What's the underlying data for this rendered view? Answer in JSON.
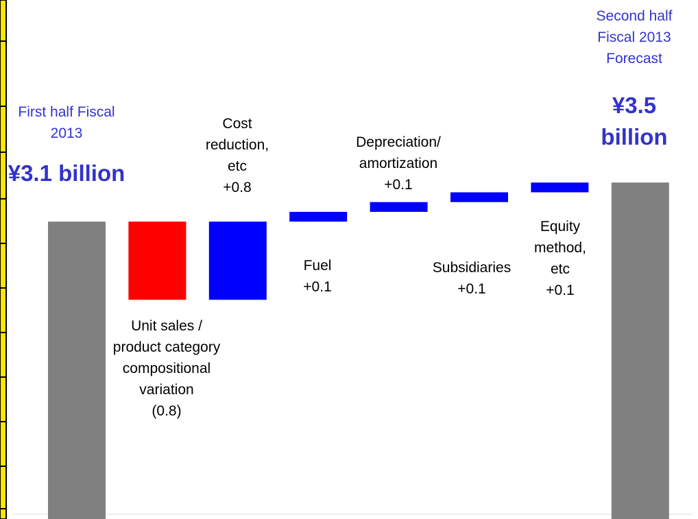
{
  "chart_data": {
    "type": "waterfall",
    "categories": [
      "First half Fiscal 2013",
      "Unit sales / product category compositional variation",
      "Cost reduction, etc",
      "Fuel",
      "Depreciation/ amortization",
      "Subsidiaries",
      "Equity method, etc",
      "Second half Fiscal 2013 Forecast"
    ],
    "values": [
      3.1,
      -0.8,
      0.8,
      0.1,
      0.1,
      0.1,
      0.1,
      3.5
    ],
    "value_labels": [
      "¥3.1 billion",
      "(0.8)",
      "+0.8",
      "+0.1",
      "+0.1",
      "+0.1",
      "+0.1",
      "¥3.5 billion"
    ],
    "colors": [
      "#808080",
      "#ff0000",
      "#0000ff",
      "#0000ff",
      "#0000ff",
      "#0000ff",
      "#0000ff",
      "#808080"
    ]
  }
}
